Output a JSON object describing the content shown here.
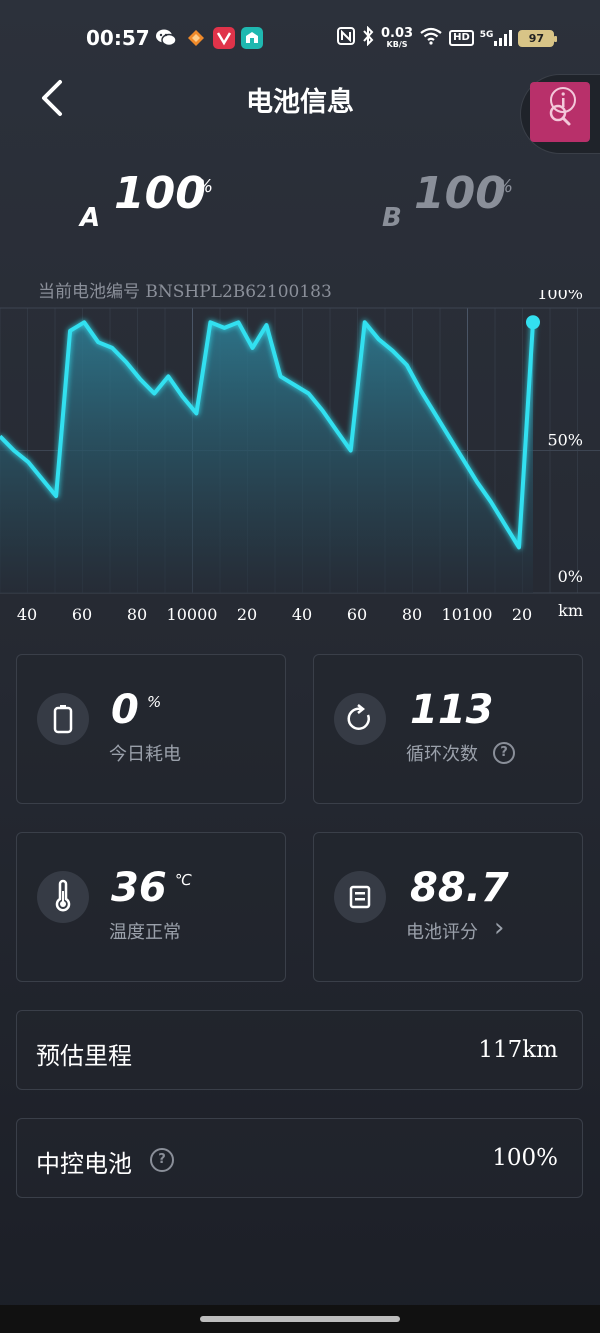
{
  "status_bar": {
    "time": "00:57",
    "net_speed_value": "0.03",
    "net_speed_unit": "KB/S",
    "hd_label": "HD",
    "network_label": "5G",
    "battery_level": "97"
  },
  "header": {
    "title": "电池信息",
    "back_icon": "chevron-left-icon"
  },
  "batteries": {
    "a": {
      "letter": "A",
      "value": "100",
      "unit": "%"
    },
    "b": {
      "letter": "B",
      "value": "100",
      "unit": "%"
    }
  },
  "serial_label": "当前电池编号 BNSHPL2B62100183",
  "chart_data": {
    "type": "area",
    "y_ticks": [
      "100%",
      "50%",
      "0%"
    ],
    "x_ticks": [
      "40",
      "60",
      "80",
      "10000",
      "20",
      "40",
      "60",
      "80",
      "10100",
      "20"
    ],
    "x_unit": "km",
    "ylim": [
      0,
      100
    ],
    "series": [
      {
        "values": [
          55,
          50,
          46,
          40,
          34,
          92,
          95,
          88,
          86,
          81,
          75,
          70,
          76,
          69,
          63,
          95,
          93,
          95,
          86,
          94,
          76,
          73,
          70,
          64,
          57,
          50,
          95,
          89,
          85,
          80,
          71,
          63,
          55,
          47,
          39,
          32,
          24,
          16,
          95
        ]
      }
    ],
    "colors": {
      "line": "#33e0f0",
      "fill_top": "#2d7e95",
      "fill_bottom": "#252d38"
    }
  },
  "cards": [
    {
      "icon": "battery-icon",
      "value": "0",
      "unit": "%",
      "label": "今日耗电"
    },
    {
      "icon": "refresh-icon",
      "value": "113",
      "unit": "",
      "label": "循环次数",
      "help": "?"
    },
    {
      "icon": "thermometer-icon",
      "value": "36",
      "unit": "℃",
      "label": "温度正常"
    },
    {
      "icon": "document-icon",
      "value": "88.7",
      "unit": "",
      "label": "电池评分",
      "chevron": "›"
    }
  ],
  "rows": {
    "range": {
      "label": "预估里程",
      "value": "117km"
    },
    "central": {
      "label": "中控电池",
      "value": "100%",
      "help": "?"
    }
  },
  "accent": "#33e0f0"
}
